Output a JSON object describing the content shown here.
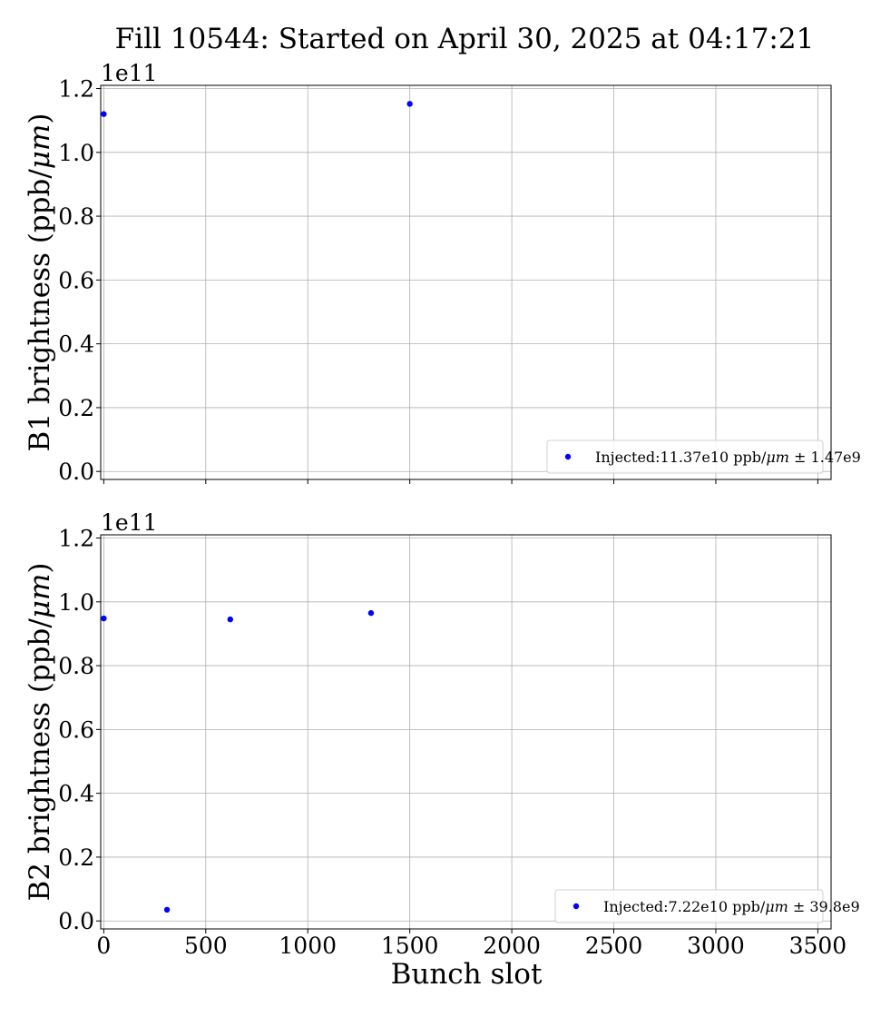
{
  "title": "Fill 10544: Started on April 30, 2025 at 04:17:21",
  "xlabel": "Bunch slot",
  "chart_data": [
    {
      "type": "scatter",
      "ylabel": "B1 brightness (ppb/μm)",
      "ylabel_parts": [
        "B1 brightness (ppb/",
        "μm",
        ")"
      ],
      "offset_label": "1e11",
      "xlim": [
        -15,
        3565
      ],
      "ylim": [
        -0.025,
        1.21
      ],
      "y_multiplier": 100000000000.0,
      "xticks": [
        0,
        500,
        1000,
        1500,
        2000,
        2500,
        3000,
        3500
      ],
      "xtick_labels_visible": false,
      "yticks": [
        0.0,
        0.2,
        0.4,
        0.6,
        0.8,
        1.0,
        1.2
      ],
      "ytick_labels": [
        "0.0",
        "0.2",
        "0.4",
        "0.6",
        "0.8",
        "1.0",
        "1.2"
      ],
      "grid": true,
      "legend_position": "lower-right",
      "color": "#0000ff",
      "series": [
        {
          "name": "Injected:11.37e10 ppb/μm ± 1.47e9",
          "legend_parts": [
            "Injected:11.37e10 ppb/",
            "μm",
            " ± 1.47e9"
          ],
          "x": [
            0,
            1500
          ],
          "y": [
            1.12,
            1.152
          ]
        }
      ]
    },
    {
      "type": "scatter",
      "ylabel": "B2 brightness (ppb/μm)",
      "ylabel_parts": [
        "B2 brightness (ppb/",
        "μm",
        ")"
      ],
      "offset_label": "1e11",
      "xlim": [
        -15,
        3565
      ],
      "ylim": [
        -0.025,
        1.21
      ],
      "y_multiplier": 100000000000.0,
      "xticks": [
        0,
        500,
        1000,
        1500,
        2000,
        2500,
        3000,
        3500
      ],
      "xtick_labels": [
        "0",
        "500",
        "1000",
        "1500",
        "2000",
        "2500",
        "3000",
        "3500"
      ],
      "xtick_labels_visible": true,
      "yticks": [
        0.0,
        0.2,
        0.4,
        0.6,
        0.8,
        1.0,
        1.2
      ],
      "ytick_labels": [
        "0.0",
        "0.2",
        "0.4",
        "0.6",
        "0.8",
        "1.0",
        "1.2"
      ],
      "grid": true,
      "legend_position": "lower-right",
      "color": "#0000ff",
      "series": [
        {
          "name": "Injected:7.22e10 ppb/μm ± 39.8e9",
          "legend_parts": [
            "Injected:7.22e10 ppb/",
            "μm",
            " ± 39.8e9"
          ],
          "x": [
            0,
            310,
            620,
            1310
          ],
          "y": [
            0.948,
            0.035,
            0.945,
            0.965
          ]
        }
      ]
    }
  ]
}
